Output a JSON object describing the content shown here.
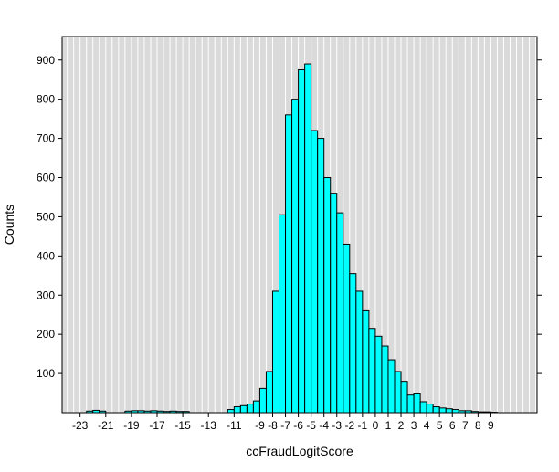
{
  "chart_data": {
    "type": "bar",
    "title": "",
    "xlabel": "ccFraudLogitScore",
    "ylabel": "Counts",
    "bin_width": 0.5,
    "x_domain": [
      -24.4,
      12.6
    ],
    "y_domain": [
      0,
      960
    ],
    "x_ticks": [
      -23,
      -21,
      -19,
      -17,
      -15,
      -13,
      -11,
      -9,
      -8,
      -7,
      -6,
      -5,
      -4,
      -3,
      -2,
      -1,
      0,
      1,
      2,
      3,
      4,
      5,
      6,
      7,
      8,
      9
    ],
    "y_ticks": [
      100,
      200,
      300,
      400,
      500,
      600,
      700,
      800,
      900
    ],
    "grid_step": 0.5,
    "panel_color": "#dadada",
    "grid_color": "#ffffff",
    "bar_color": "#00ffff",
    "bar_stroke": "#000000",
    "axis_color": "#000000",
    "bins": [
      {
        "x": -22.5,
        "count": 4
      },
      {
        "x": -22.0,
        "count": 6
      },
      {
        "x": -21.5,
        "count": 4
      },
      {
        "x": -19.5,
        "count": 4
      },
      {
        "x": -19.0,
        "count": 5
      },
      {
        "x": -18.5,
        "count": 5
      },
      {
        "x": -18.0,
        "count": 4
      },
      {
        "x": -17.5,
        "count": 5
      },
      {
        "x": -17.0,
        "count": 4
      },
      {
        "x": -16.5,
        "count": 3
      },
      {
        "x": -16.0,
        "count": 4
      },
      {
        "x": -15.5,
        "count": 3
      },
      {
        "x": -15.0,
        "count": 3
      },
      {
        "x": -11.5,
        "count": 8
      },
      {
        "x": -11.0,
        "count": 15
      },
      {
        "x": -10.5,
        "count": 18
      },
      {
        "x": -10.0,
        "count": 22
      },
      {
        "x": -9.5,
        "count": 30
      },
      {
        "x": -9.0,
        "count": 62
      },
      {
        "x": -8.5,
        "count": 105
      },
      {
        "x": -8.0,
        "count": 310
      },
      {
        "x": -7.5,
        "count": 505
      },
      {
        "x": -7.0,
        "count": 760
      },
      {
        "x": -6.5,
        "count": 800
      },
      {
        "x": -6.0,
        "count": 875
      },
      {
        "x": -5.5,
        "count": 890
      },
      {
        "x": -5.0,
        "count": 720
      },
      {
        "x": -4.5,
        "count": 700
      },
      {
        "x": -4.0,
        "count": 600
      },
      {
        "x": -3.5,
        "count": 560
      },
      {
        "x": -3.0,
        "count": 510
      },
      {
        "x": -2.5,
        "count": 430
      },
      {
        "x": -2.0,
        "count": 355
      },
      {
        "x": -1.5,
        "count": 310
      },
      {
        "x": -1.0,
        "count": 260
      },
      {
        "x": -0.5,
        "count": 215
      },
      {
        "x": 0.0,
        "count": 195
      },
      {
        "x": 0.5,
        "count": 170
      },
      {
        "x": 1.0,
        "count": 135
      },
      {
        "x": 1.5,
        "count": 105
      },
      {
        "x": 2.0,
        "count": 80
      },
      {
        "x": 2.5,
        "count": 45
      },
      {
        "x": 3.0,
        "count": 48
      },
      {
        "x": 3.5,
        "count": 28
      },
      {
        "x": 4.0,
        "count": 22
      },
      {
        "x": 4.5,
        "count": 15
      },
      {
        "x": 5.0,
        "count": 12
      },
      {
        "x": 5.5,
        "count": 10
      },
      {
        "x": 6.0,
        "count": 8
      },
      {
        "x": 6.5,
        "count": 5
      },
      {
        "x": 7.0,
        "count": 5
      },
      {
        "x": 7.5,
        "count": 3
      },
      {
        "x": 8.0,
        "count": 2
      },
      {
        "x": 8.5,
        "count": 2
      },
      {
        "x": 9.0,
        "count": 1
      }
    ]
  }
}
